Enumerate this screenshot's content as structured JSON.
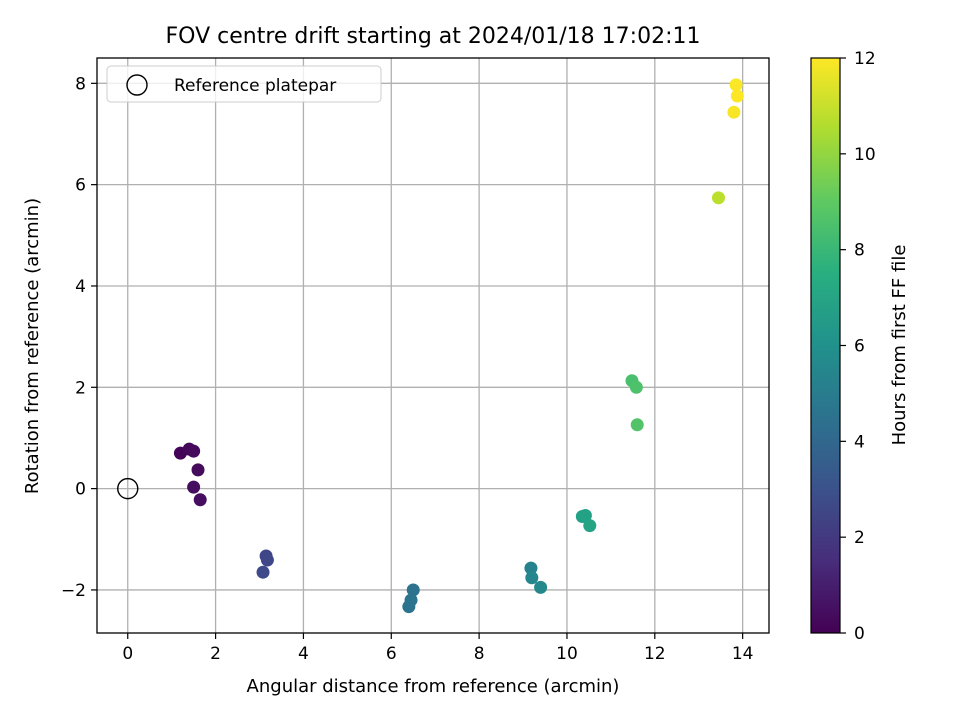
{
  "chart_data": {
    "type": "scatter",
    "title": "FOV centre drift starting at 2024/01/18 17:02:11",
    "xlabel": "Angular distance from reference (arcmin)",
    "ylabel": "Rotation from reference (arcmin)",
    "xlim": [
      -0.7,
      14.6
    ],
    "ylim": [
      -2.85,
      8.5
    ],
    "x_ticks": [
      0,
      2,
      4,
      6,
      8,
      10,
      12,
      14
    ],
    "y_ticks": [
      -2,
      0,
      2,
      4,
      6,
      8
    ],
    "x_tick_labels": [
      "0",
      "2",
      "4",
      "6",
      "8",
      "10",
      "12",
      "14"
    ],
    "y_tick_labels": [
      "−2",
      "0",
      "2",
      "4",
      "6",
      "8"
    ],
    "grid": true,
    "legend": {
      "position": "top-left",
      "entries": [
        "Reference platepar"
      ]
    },
    "reference_point": {
      "x": 0,
      "y": 0
    },
    "colormap": "viridis",
    "colorbar": {
      "label": "Hours from first FF file",
      "range": [
        0,
        12
      ],
      "ticks": [
        0,
        2,
        4,
        6,
        8,
        10,
        12
      ],
      "tick_labels": [
        "0",
        "2",
        "4",
        "6",
        "8",
        "10",
        "12"
      ]
    },
    "points": [
      {
        "x": 1.2,
        "y": 0.7,
        "hours": 0.1
      },
      {
        "x": 1.4,
        "y": 0.78,
        "hours": 0.2
      },
      {
        "x": 1.5,
        "y": 0.74,
        "hours": 0.3
      },
      {
        "x": 1.6,
        "y": 0.37,
        "hours": 0.35
      },
      {
        "x": 1.5,
        "y": 0.03,
        "hours": 0.4
      },
      {
        "x": 1.65,
        "y": -0.22,
        "hours": 0.45
      },
      {
        "x": 3.15,
        "y": -1.33,
        "hours": 2.5
      },
      {
        "x": 3.18,
        "y": -1.41,
        "hours": 2.6
      },
      {
        "x": 3.08,
        "y": -1.65,
        "hours": 2.7
      },
      {
        "x": 6.5,
        "y": -2.0,
        "hours": 4.5
      },
      {
        "x": 6.45,
        "y": -2.2,
        "hours": 4.55
      },
      {
        "x": 6.4,
        "y": -2.33,
        "hours": 4.6
      },
      {
        "x": 9.18,
        "y": -1.57,
        "hours": 5.4
      },
      {
        "x": 9.2,
        "y": -1.76,
        "hours": 5.5
      },
      {
        "x": 9.4,
        "y": -1.95,
        "hours": 5.6
      },
      {
        "x": 10.35,
        "y": -0.55,
        "hours": 6.8
      },
      {
        "x": 10.42,
        "y": -0.53,
        "hours": 6.9
      },
      {
        "x": 10.52,
        "y": -0.73,
        "hours": 7.0
      },
      {
        "x": 11.48,
        "y": 2.13,
        "hours": 8.5
      },
      {
        "x": 11.58,
        "y": 2.0,
        "hours": 8.6
      },
      {
        "x": 11.6,
        "y": 1.26,
        "hours": 8.7
      },
      {
        "x": 13.45,
        "y": 5.74,
        "hours": 10.8
      },
      {
        "x": 13.8,
        "y": 7.43,
        "hours": 11.9
      },
      {
        "x": 13.85,
        "y": 7.97,
        "hours": 11.95
      },
      {
        "x": 13.88,
        "y": 7.75,
        "hours": 12.0
      }
    ]
  }
}
